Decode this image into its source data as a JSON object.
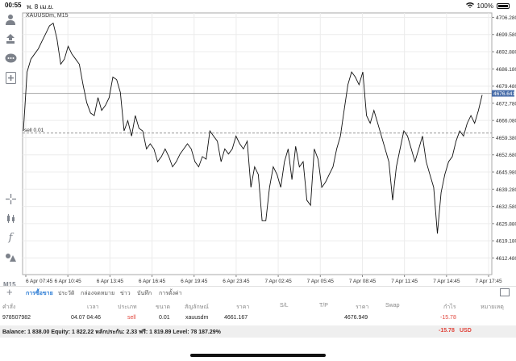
{
  "status": {
    "time": "00:55",
    "date": "พ. 8 เม.ย.",
    "battery": "100%"
  },
  "chart": {
    "symbol": "XAUUSDm, M15",
    "sell_label": "sell 0.01",
    "current_price": "4676.641",
    "price_ticks": [
      "4706.280",
      "4699.580",
      "4692.880",
      "4686.180",
      "4679.480",
      "4672.780",
      "4666.080",
      "4659.380",
      "4652.680",
      "4645.980",
      "4639.280",
      "4632.580",
      "4625.880",
      "4619.180",
      "4612.480"
    ],
    "time_ticks": [
      "6 Apr 07:45",
      "6 Apr 10:45",
      "6 Apr 13:45",
      "6 Apr 16:45",
      "6 Apr 19:45",
      "6 Apr 23:45",
      "7 Apr 02:45",
      "7 Apr 05:45",
      "7 Apr 08:45",
      "7 Apr 11:45",
      "7 Apr 14:45",
      "7 Apr 17:45"
    ]
  },
  "chart_data": {
    "type": "line",
    "title": "XAUUSDm, M15",
    "xlabel": "",
    "ylabel": "",
    "ylim": [
      4606,
      4708
    ],
    "current_price": 4676.641,
    "sell_level": 4661.167,
    "series": [
      {
        "values": [
          4662,
          4685,
          4690,
          4692,
          4694,
          4697,
          4700,
          4703,
          4704,
          4698,
          4688,
          4690,
          4695,
          4692,
          4690,
          4688,
          4680,
          4673,
          4669,
          4668,
          4675,
          4670,
          4672,
          4675,
          4683,
          4682,
          4677,
          4662,
          4666,
          4660,
          4668,
          4663,
          4662,
          4655,
          4657,
          4655,
          4650,
          4652,
          4655,
          4652,
          4648,
          4650,
          4653,
          4655,
          4657,
          4655,
          4650,
          4648,
          4652,
          4651,
          4662,
          4660,
          4658,
          4650,
          4655,
          4653,
          4655,
          4660,
          4657,
          4655,
          4658,
          4640,
          4648,
          4645,
          4627,
          4627,
          4640,
          4648,
          4645,
          4640,
          4650,
          4655,
          4643,
          4656,
          4648,
          4650,
          4635,
          4633,
          4655,
          4651,
          4640,
          4642,
          4645,
          4648,
          4655,
          4660,
          4670,
          4680,
          4685,
          4683,
          4680,
          4685,
          4668,
          4665,
          4670,
          4665,
          4660,
          4655,
          4650,
          4635,
          4648,
          4655,
          4662,
          4660,
          4655,
          4650,
          4655,
          4660,
          4650,
          4645,
          4640,
          4622,
          4638,
          4645,
          4650,
          4652,
          4658,
          4662,
          4660,
          4665,
          4668,
          4665,
          4670,
          4676
        ]
      }
    ]
  },
  "toolbar": {
    "timeframe": "M15"
  },
  "tabs": [
    "การซื้อขาย",
    "ประวัติ",
    "กล่องจดหมาย",
    "ข่าว",
    "บันทึก",
    "การตั้งค่า"
  ],
  "trades": {
    "headers": [
      "คำสั่ง",
      "เวลา",
      "ประเภท",
      "ขนาด",
      "สัญลักษณ์",
      "ราคา",
      "S/L",
      "T/P",
      "ราคา",
      "Swap",
      "กำไร",
      "หมายเหตุ"
    ],
    "row": [
      "978507982",
      "04.07 04:46",
      "sell",
      "0.01",
      "xauusdm",
      "4661.167",
      "",
      "",
      "4676.949",
      "",
      "-15.78",
      ""
    ]
  },
  "balance": {
    "text": "Balance: 1 838.00 Equity: 1 822.22 หลักประกัน: 2.33 ฟรี: 1 819.89 Level: 78 187.29%",
    "profit": "-15.78",
    "currency": "USD"
  }
}
